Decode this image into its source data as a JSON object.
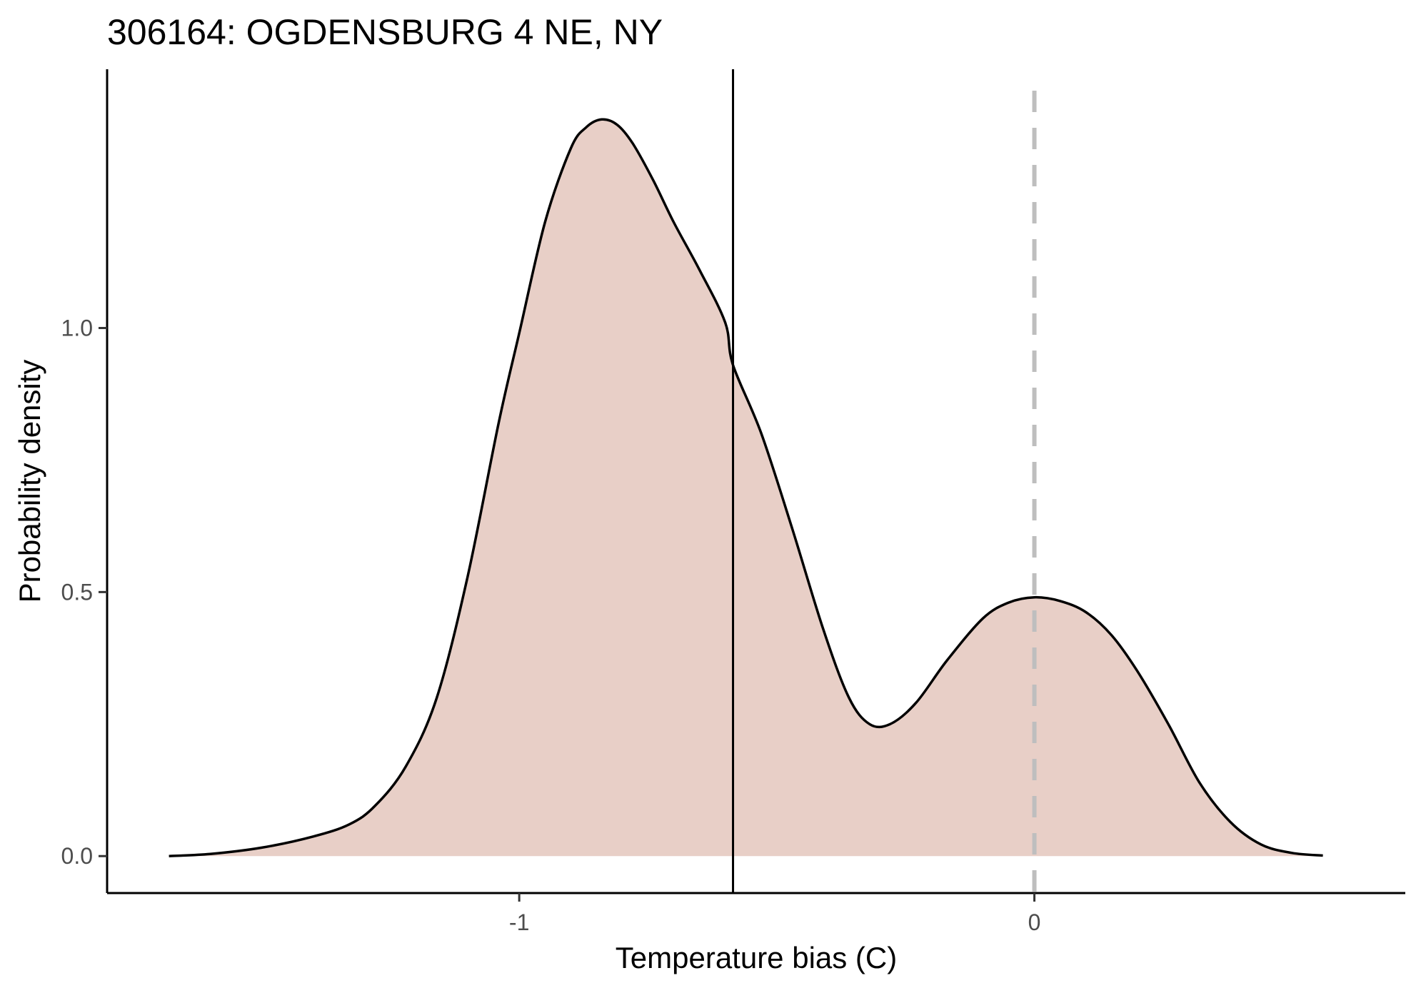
{
  "chart_data": {
    "type": "area",
    "title": "306164: OGDENSBURG 4 NE, NY",
    "xlabel": "Temperature bias (C)",
    "ylabel": "Probability density",
    "xlim": [
      -1.8,
      0.72
    ],
    "ylim": [
      -0.07,
      1.49
    ],
    "x_ticks": [
      -1,
      0
    ],
    "x_tick_labels": [
      "-1",
      "0"
    ],
    "y_ticks": [
      0.0,
      0.5,
      1.0
    ],
    "y_tick_labels": [
      "0.0",
      "0.5",
      "1.0"
    ],
    "grid": false,
    "legend": "none",
    "colors": {
      "fill": "#e8cfc7",
      "line": "#000000",
      "reference_line": "#bebebe"
    },
    "reference_lines": [
      {
        "x": -0.585,
        "style": "solid",
        "color": "#000000"
      },
      {
        "x": 0.0,
        "style": "dashed",
        "color": "#bebebe"
      }
    ],
    "series": [
      {
        "x": [
          -1.68,
          -1.6,
          -1.5,
          -1.4,
          -1.33,
          -1.28,
          -1.22,
          -1.16,
          -1.1,
          -1.04,
          -1.0,
          -0.95,
          -0.9,
          -0.87,
          -0.84,
          -0.81,
          -0.78,
          -0.74,
          -0.7,
          -0.65,
          -0.6,
          -0.585,
          -0.53,
          -0.47,
          -0.41,
          -0.36,
          -0.32,
          -0.28,
          -0.23,
          -0.17,
          -0.1,
          -0.05,
          0.0,
          0.05,
          0.1,
          0.15,
          0.2,
          0.26,
          0.32,
          0.38,
          0.44,
          0.5,
          0.56
        ],
        "y": [
          0.0,
          0.004,
          0.016,
          0.037,
          0.06,
          0.095,
          0.17,
          0.3,
          0.53,
          0.82,
          0.99,
          1.2,
          1.34,
          1.38,
          1.395,
          1.385,
          1.35,
          1.28,
          1.2,
          1.11,
          1.01,
          0.93,
          0.8,
          0.62,
          0.43,
          0.3,
          0.25,
          0.25,
          0.29,
          0.37,
          0.45,
          0.48,
          0.49,
          0.483,
          0.462,
          0.418,
          0.35,
          0.25,
          0.14,
          0.065,
          0.022,
          0.006,
          0.001
        ]
      }
    ]
  }
}
